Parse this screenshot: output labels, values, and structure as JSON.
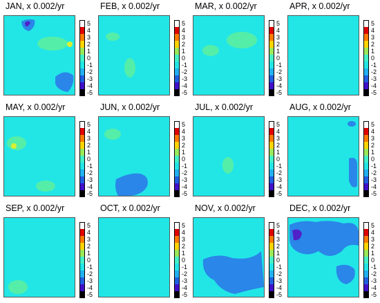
{
  "chart_data": {
    "type": "heatmap",
    "colorbar": {
      "ticks": [
        "5",
        "4",
        "3",
        "2",
        "1",
        "0",
        "-1",
        "-2",
        "-3",
        "-4",
        "-5"
      ],
      "colors": [
        "#ffffff",
        "#e00000",
        "#ff7a00",
        "#ffd400",
        "#9be85a",
        "#44f0c8",
        "#22e6e6",
        "#22b0f0",
        "#2060e0",
        "#4010c8",
        "#000000"
      ]
    },
    "panels": [
      {
        "title": "JAN, x 0.002/yr"
      },
      {
        "title": "FEB, x 0.002/yr"
      },
      {
        "title": "MAR, x 0.002/yr"
      },
      {
        "title": "APR, x 0.002/yr"
      },
      {
        "title": "MAY, x 0.002/yr"
      },
      {
        "title": "JUN, x 0.002/yr"
      },
      {
        "title": "JUL, x 0.002/yr"
      },
      {
        "title": "AUG, x 0.002/yr"
      },
      {
        "title": "SEP, x 0.002/yr"
      },
      {
        "title": "OCT, x 0.002/yr"
      },
      {
        "title": "NOV, x 0.002/yr"
      },
      {
        "title": "DEC, x 0.002/yr"
      }
    ],
    "colors": {
      "background": "#22e6e6",
      "negative_patch": "#2a86e8",
      "strong_negative_patch": "#5020c8",
      "positive_patch": "#55eea8",
      "positive_hotspot": "#d8f030"
    }
  }
}
